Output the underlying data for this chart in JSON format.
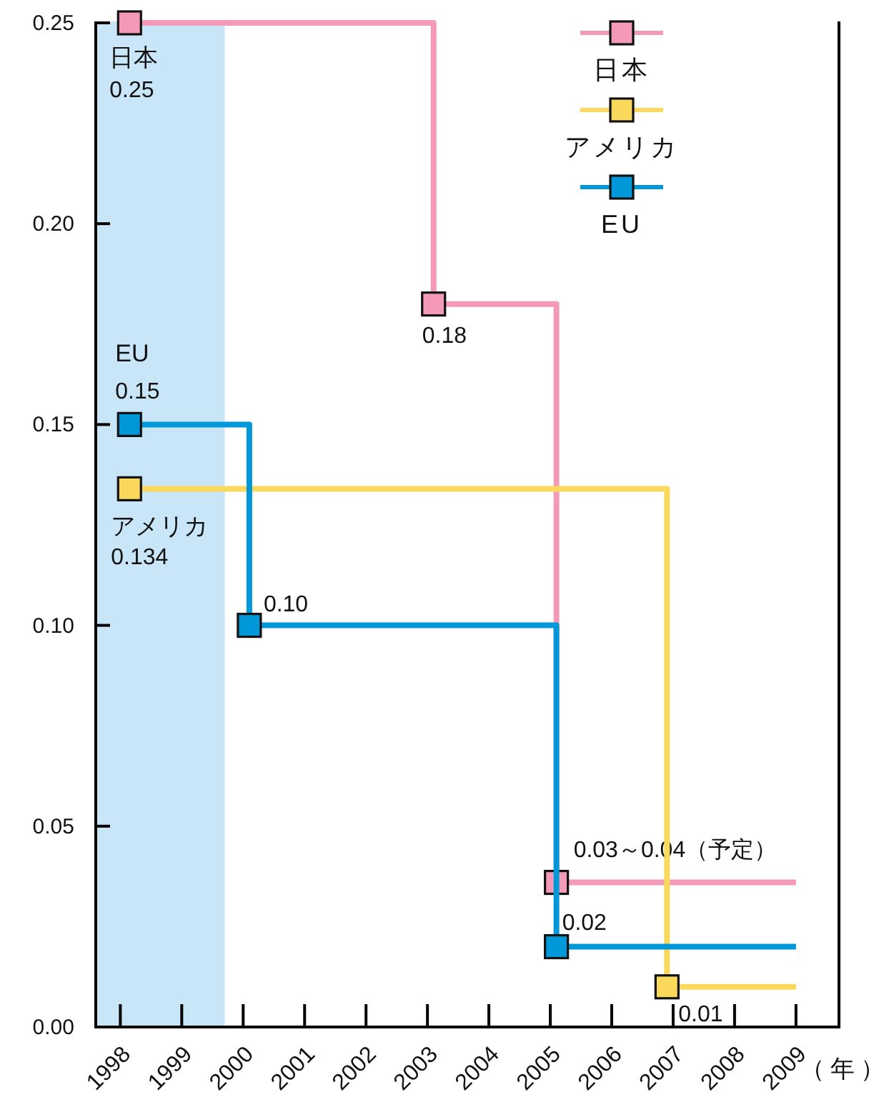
{
  "chart_data": {
    "type": "step",
    "xlabel": "（年）",
    "xlim": [
      1997.6,
      2009.7
    ],
    "xticks": [
      1998,
      1999,
      2000,
      2001,
      2002,
      2003,
      2004,
      2005,
      2006,
      2007,
      2008,
      2009
    ],
    "ylim": [
      0,
      0.25
    ],
    "yticks": [
      {
        "value": 0,
        "label": "0.00"
      },
      0.05,
      {
        "value": 0.1,
        "label": "0.10"
      },
      0.15,
      {
        "value": 0.2,
        "label": "0.20"
      },
      0.25
    ],
    "bands": [
      {
        "axis": "x",
        "from": 1997.6,
        "to": 1999.7,
        "color": "#c8e6f8"
      }
    ],
    "marker": "square",
    "legend": "top right",
    "series": [
      {
        "name": "日本",
        "color": "#f49ab8",
        "x": [
          1998.15,
          2003.1,
          2005.1,
          2009
        ],
        "values": [
          0.25,
          0.18,
          0.036,
          0.036
        ],
        "value_labels": [
          "0.25",
          "0.18",
          "0.03～0.04（予定）",
          null
        ]
      },
      {
        "name": "アメリカ",
        "color": "#f9d85c",
        "x": [
          1998.15,
          2006.9,
          2009
        ],
        "values": [
          0.134,
          0.01,
          0.01
        ],
        "value_labels": [
          "0.134",
          "0.01",
          null
        ]
      },
      {
        "name": "EU",
        "color": "#0098d8",
        "x": [
          1998.15,
          2000.1,
          2005.1,
          2009
        ],
        "values": [
          0.15,
          0.1,
          0.02,
          0.02
        ],
        "value_labels": [
          "0.15",
          "0.10",
          "0.02",
          null
        ]
      }
    ]
  }
}
